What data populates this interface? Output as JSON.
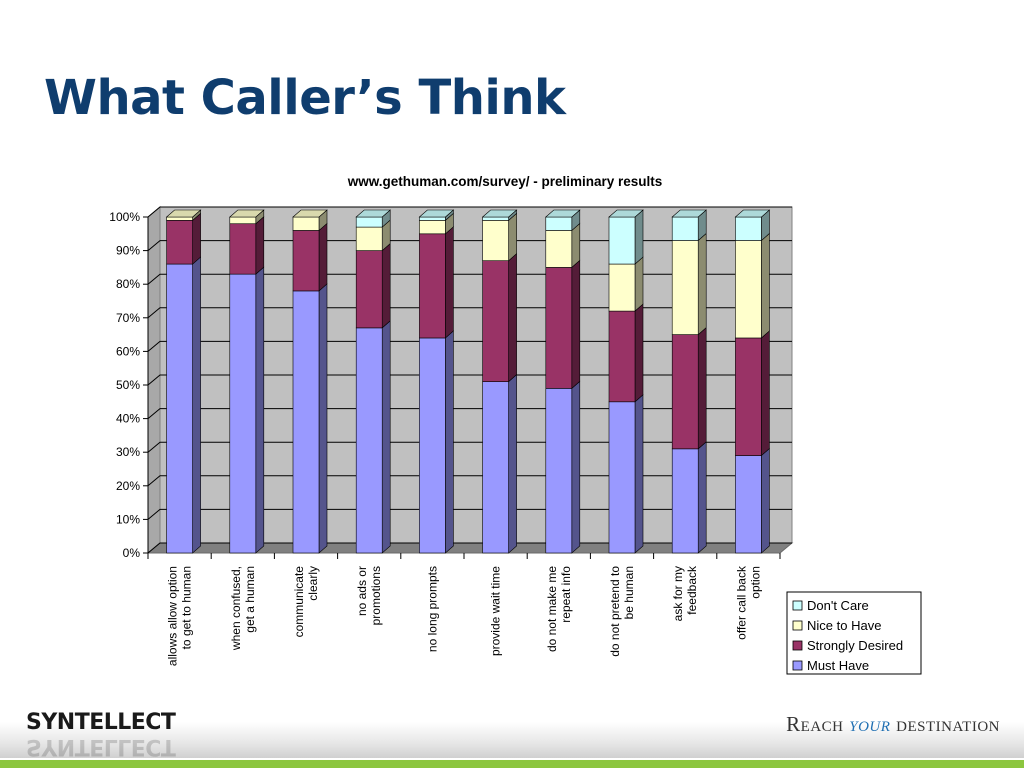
{
  "slide": {
    "title": "What Caller’s Think",
    "logo_text": "SYNTELLECT",
    "tagline_before": "Reach ",
    "tagline_accent": "your",
    "tagline_after": " destination"
  },
  "chart_data": {
    "type": "bar",
    "stacked": true,
    "percent_stacked": true,
    "three_d": true,
    "title": "www.gethuman.com/survey/ - preliminary results",
    "categories": [
      [
        "allows allow option",
        "to get to human"
      ],
      [
        "when confused,",
        "get a human"
      ],
      [
        "communicate",
        "clearly"
      ],
      [
        "no ads or",
        "promotions"
      ],
      [
        "no long prompts"
      ],
      [
        "provide wait time"
      ],
      [
        "do not make me",
        "repeat info"
      ],
      [
        "do not pretend to",
        "be human"
      ],
      [
        "ask for my",
        "feedback"
      ],
      [
        "offer call back",
        "option"
      ]
    ],
    "series": [
      {
        "name": "Must Have",
        "color": "#9999ff",
        "values": [
          86,
          83,
          78,
          67,
          64,
          51,
          49,
          45,
          31,
          29
        ]
      },
      {
        "name": "Strongly Desired",
        "color": "#993366",
        "values": [
          13,
          15,
          18,
          23,
          31,
          36,
          36,
          27,
          34,
          35
        ]
      },
      {
        "name": "Nice to Have",
        "color": "#ffffcc",
        "values": [
          1,
          2,
          4,
          7,
          4,
          12,
          11,
          14,
          28,
          29
        ]
      },
      {
        "name": "Don't Care",
        "color": "#ccffff",
        "values": [
          0,
          0,
          0,
          3,
          1,
          1,
          4,
          14,
          7,
          7
        ]
      }
    ],
    "legend_order": [
      "Don't Care",
      "Nice to Have",
      "Strongly Desired",
      "Must Have"
    ],
    "yticks": [
      "0%",
      "10%",
      "20%",
      "30%",
      "40%",
      "50%",
      "60%",
      "70%",
      "80%",
      "90%",
      "100%"
    ],
    "ylim": [
      0,
      100
    ],
    "grid": true,
    "legend_position": "right",
    "plot_background": "#c0c0c0"
  }
}
